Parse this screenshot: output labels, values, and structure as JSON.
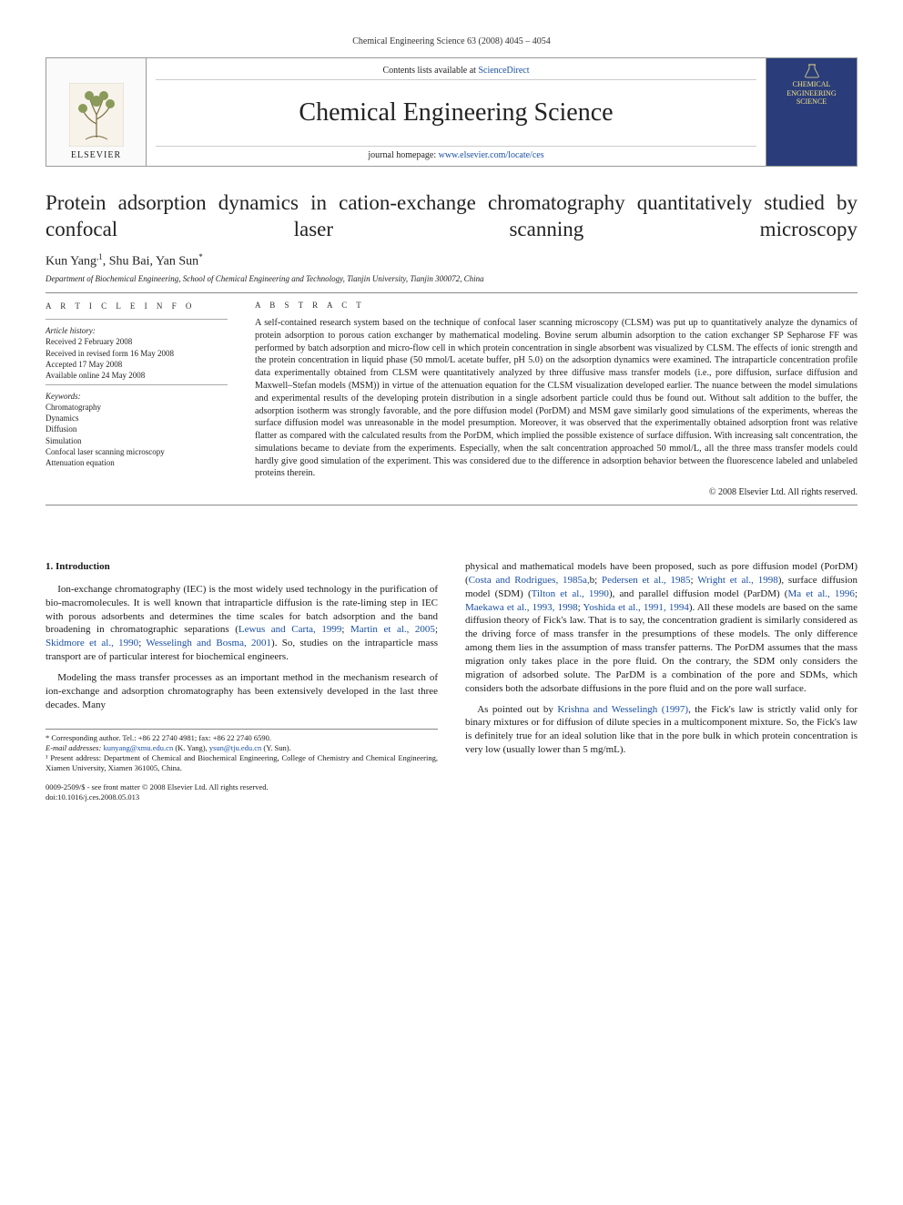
{
  "running_head": "Chemical Engineering Science 63 (2008) 4045 – 4054",
  "banner": {
    "publisher": "ELSEVIER",
    "contents_prefix": "Contents lists available at ",
    "contents_link": "ScienceDirect",
    "journal": "Chemical Engineering Science",
    "homepage_prefix": "journal homepage: ",
    "homepage_url": "www.elsevier.com/locate/ces",
    "cover_line1": "CHEMICAL",
    "cover_line2": "ENGINEERING",
    "cover_line3": "SCIENCE"
  },
  "title": "Protein adsorption dynamics in cation-exchange chromatography quantitatively studied by confocal laser scanning microscopy",
  "authors_html": "Kun Yang<sup>,1</sup>, Shu Bai, Yan Sun<sup>*</sup>",
  "affiliation": "Department of Biochemical Engineering, School of Chemical Engineering and Technology, Tianjin University, Tianjin 300072, China",
  "article_info": {
    "heading": "A R T I C L E   I N F O",
    "history_label": "Article history:",
    "received": "Received 2 February 2008",
    "revised": "Received in revised form 16 May 2008",
    "accepted": "Accepted 17 May 2008",
    "online": "Available online 24 May 2008",
    "keywords_label": "Keywords:",
    "keywords": [
      "Chromatography",
      "Dynamics",
      "Diffusion",
      "Simulation",
      "Confocal laser scanning microscopy",
      "Attenuation equation"
    ]
  },
  "abstract": {
    "heading": "A B S T R A C T",
    "text": "A self-contained research system based on the technique of confocal laser scanning microscopy (CLSM) was put up to quantitatively analyze the dynamics of protein adsorption to porous cation exchanger by mathematical modeling. Bovine serum albumin adsorption to the cation exchanger SP Sepharose FF was performed by batch adsorption and micro-flow cell in which protein concentration in single absorbent was visualized by CLSM. The effects of ionic strength and the protein concentration in liquid phase (50 mmol/L acetate buffer, pH 5.0) on the adsorption dynamics were examined. The intraparticle concentration profile data experimentally obtained from CLSM were quantitatively analyzed by three diffusive mass transfer models (i.e., pore diffusion, surface diffusion and Maxwell–Stefan models (MSM)) in virtue of the attenuation equation for the CLSM visualization developed earlier. The nuance between the model simulations and experimental results of the developing protein distribution in a single adsorbent particle could thus be found out. Without salt addition to the buffer, the adsorption isotherm was strongly favorable, and the pore diffusion model (PorDM) and MSM gave similarly good simulations of the experiments, whereas the surface diffusion model was unreasonable in the model presumption. Moreover, it was observed that the experimentally obtained adsorption front was relative flatter as compared with the calculated results from the PorDM, which implied the possible existence of surface diffusion. With increasing salt concentration, the simulations became to deviate from the experiments. Especially, when the salt concentration approached 50 mmol/L, all the three mass transfer models could hardly give good simulation of the experiment. This was considered due to the difference in adsorption behavior between the fluorescence labeled and unlabeled proteins therein.",
    "copyright": "© 2008 Elsevier Ltd. All rights reserved."
  },
  "section1": {
    "heading": "1. Introduction",
    "p1_a": "Ion-exchange chromatography (IEC) is the most widely used technology in the purification of bio-macromolecules. It is well known that intraparticle diffusion is the rate-liming step in IEC with porous adsorbents and determines the time scales for batch adsorption and the band broadening in chromatographic separations (",
    "p1_link1": "Lewus and Carta, 1999",
    "p1_b": "; ",
    "p1_link2": "Martin et al., 2005",
    "p1_c": "; ",
    "p1_link3": "Skidmore et al., 1990",
    "p1_d": "; ",
    "p1_link4": "Wesselingh and Bosma, 2001",
    "p1_e": "). So, studies on the intraparticle mass transport are of particular interest for biochemical engineers.",
    "p2": "Modeling the mass transfer processes as an important method in the mechanism research of ion-exchange and adsorption chromatography has been extensively developed in the last three decades. Many",
    "p3_a": "physical and mathematical models have been proposed, such as pore diffusion model (PorDM) (",
    "p3_link1": "Costa and Rodrigues, 1985a,",
    "p3_b": "b; ",
    "p3_link2": "Pedersen et al., 1985",
    "p3_c": "; ",
    "p3_link3": "Wright et al., 1998",
    "p3_d": "), surface diffusion model (SDM) (",
    "p3_link4": "Tilton et al., 1990",
    "p3_e": "), and parallel diffusion model (ParDM) (",
    "p3_link5": "Ma et al., 1996",
    "p3_f": "; ",
    "p3_link6": "Maekawa et al., 1993, 1998",
    "p3_g": "; ",
    "p3_link7": "Yoshida et al., 1991, 1994",
    "p3_h": "). All these models are based on the same diffusion theory of Fick's law. That is to say, the concentration gradient is similarly considered as the driving force of mass transfer in the presumptions of these models. The only difference among them lies in the assumption of mass transfer patterns. The PorDM assumes that the mass migration only takes place in the pore fluid. On the contrary, the SDM only considers the migration of adsorbed solute. The ParDM is a combination of the pore and SDMs, which considers both the adsorbate diffusions in the pore fluid and on the pore wall surface.",
    "p4_a": "As pointed out by ",
    "p4_link1": "Krishna and Wesselingh (1997)",
    "p4_b": ", the Fick's law is strictly valid only for binary mixtures or for diffusion of dilute species in a multicomponent mixture. So, the Fick's law is definitely true for an ideal solution like that in the pore bulk in which protein concentration is very low (usually lower than 5 mg/mL)."
  },
  "footnotes": {
    "corr": "* Corresponding author. Tel.: +86 22 2740 4981; fax: +86 22 2740 6590.",
    "email_label": "E-mail addresses: ",
    "email1": "kunyang@xmu.edu.cn",
    "email1_who": " (K. Yang), ",
    "email2": "ysun@tju.edu.cn",
    "email2_who": " (Y. Sun).",
    "note1": "¹ Present address: Department of Chemical and Biochemical Engineering, College of Chemistry and Chemical Engineering, Xiamen University, Xiamen 361005, China."
  },
  "doi": {
    "line1": "0009-2509/$ - see front matter © 2008 Elsevier Ltd. All rights reserved.",
    "line2": "doi:10.1016/j.ces.2008.05.013"
  },
  "colors": {
    "link": "#1a4fa3",
    "cover_bg": "#2a3d7a",
    "cover_text": "#f4e28a",
    "rule": "#888888"
  }
}
